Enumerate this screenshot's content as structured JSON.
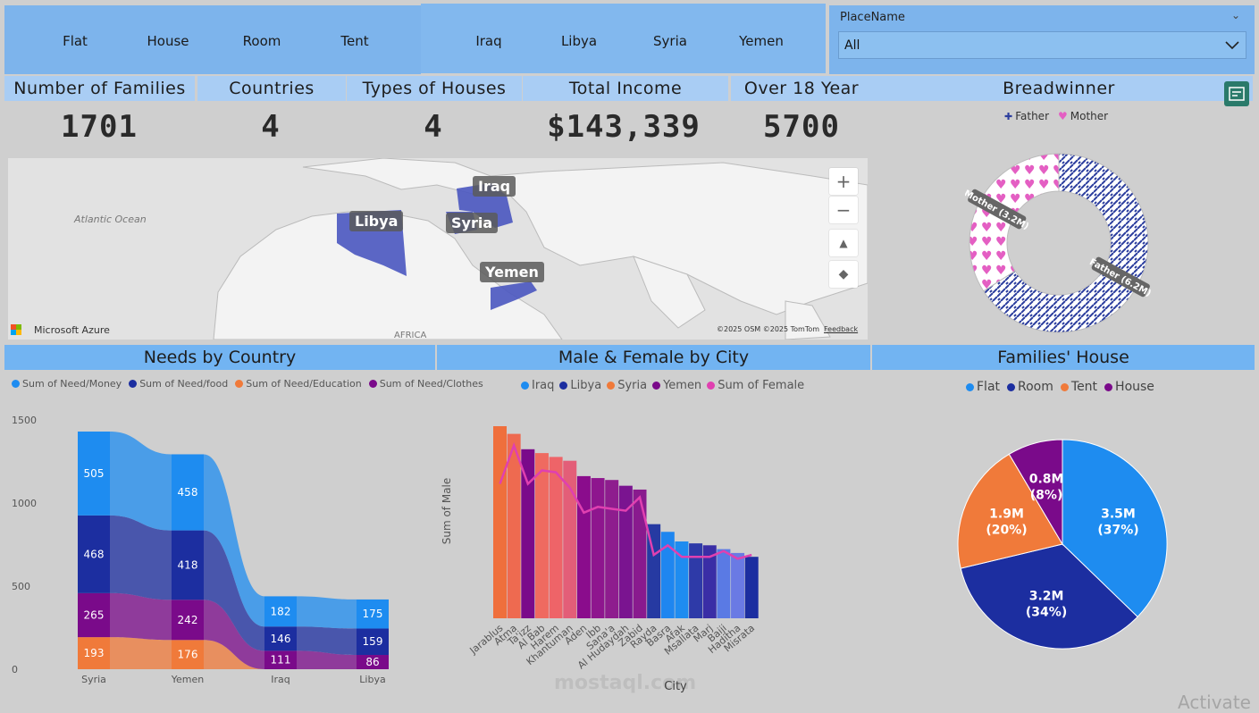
{
  "slicers": {
    "house_types": [
      "Flat",
      "House",
      "Room",
      "Tent"
    ],
    "countries": [
      "Iraq",
      "Libya",
      "Syria",
      "Yemen"
    ],
    "place": {
      "label": "PlaceName",
      "value": "All"
    }
  },
  "kpis": [
    {
      "label": "Number of Families",
      "value": "1701"
    },
    {
      "label": "Countries",
      "value": "4"
    },
    {
      "label": "Types of Houses",
      "value": "4"
    },
    {
      "label": "Total Income",
      "value": "$143,339"
    },
    {
      "label": "Over 18 Year",
      "value": "5700"
    }
  ],
  "map": {
    "ocean_label": "Atlantic Ocean",
    "continent_label": "AFRICA",
    "countries": [
      "Libya",
      "Iraq",
      "Syria",
      "Yemen"
    ],
    "attribution": "©2025 OSM  ©2025 TomTom",
    "feedback": "Feedback",
    "provider": "Microsoft Azure",
    "buttons": {
      "zoom_in": "+",
      "zoom_out": "−"
    }
  },
  "breadwinner": {
    "title": "Breadwinner",
    "chart_data": {
      "type": "pie",
      "categories": [
        "Father",
        "Mother"
      ],
      "values": [
        6.2,
        3.2
      ],
      "labels": [
        "Father (6.2M)",
        "Mother (3.2M)"
      ],
      "colors": [
        "#2c3e9e",
        "#e45fc3"
      ]
    }
  },
  "needs": {
    "title": "Needs by Country",
    "legend": [
      "Sum of Need/Money",
      "Sum of Need/food",
      "Sum of Need/Education",
      "Sum of Need/Clothes"
    ],
    "chart_data": {
      "type": "bar",
      "categories": [
        "Syria",
        "Yemen",
        "Iraq",
        "Libya"
      ],
      "series": [
        {
          "name": "Sum of Need/Education",
          "values": [
            193,
            176,
            null,
            null
          ],
          "color": "#f07a3a"
        },
        {
          "name": "Sum of Need/Clothes",
          "values": [
            265,
            242,
            111,
            86
          ],
          "color": "#7a0a8a"
        },
        {
          "name": "Sum of Need/food",
          "values": [
            468,
            418,
            146,
            159
          ],
          "color": "#1c2ea0"
        },
        {
          "name": "Sum of Need/Money",
          "values": [
            505,
            458,
            182,
            175
          ],
          "color": "#1e8cf0"
        }
      ],
      "yticks": [
        "0",
        "500",
        "1000",
        "1500"
      ],
      "ylim": [
        0,
        1500
      ]
    }
  },
  "malefemale": {
    "title": "Male & Female by City",
    "legend": [
      "Iraq",
      "Libya",
      "Syria",
      "Yemen",
      "Sum of Female"
    ],
    "chart_data": {
      "type": "bar",
      "xlabel": "City",
      "ylabel": "Sum of Male",
      "categories": [
        "Jarablus",
        "Atma",
        "Ta'izz",
        "Al Bab",
        "Harem",
        "Khantuman",
        "Aden",
        "Ibb",
        "Sana'a",
        "Al Hudaydah",
        "Zabid",
        "Rayda",
        "Basra",
        "Afak",
        "Msallata",
        "Marj",
        "Baiji",
        "Haditha",
        "Misrata"
      ],
      "values": [
        100,
        96,
        88,
        86,
        84,
        82,
        74,
        73,
        72,
        69,
        67,
        49,
        45,
        40,
        39,
        38,
        36,
        34,
        32
      ],
      "line": [
        70,
        90,
        70,
        77,
        76,
        68,
        55,
        58,
        57,
        56,
        63,
        33,
        38,
        32,
        32,
        32,
        35,
        31,
        33
      ],
      "colors": [
        "#ef6f3c",
        "#ee6a50",
        "#7a0a8a",
        "#ef6a60",
        "#ee6468",
        "#e35e78",
        "#8a0c8c",
        "#8e168e",
        "#8e1d8e",
        "#7a1490",
        "#891a8e",
        "#263aa2",
        "#1e86f0",
        "#1e8cf0",
        "#2e3aa8",
        "#3a2ea6",
        "#5a7ae4",
        "#6a7ae4",
        "#1c2ea0"
      ],
      "ylim": [
        0,
        110
      ]
    }
  },
  "families_house": {
    "title": "Families' House",
    "legend": [
      "Flat",
      "Room",
      "Tent",
      "House"
    ],
    "chart_data": {
      "type": "pie",
      "categories": [
        "Flat",
        "Room",
        "Tent",
        "House"
      ],
      "values": [
        3.5,
        3.2,
        1.9,
        0.8
      ],
      "labels": [
        "3.5M",
        "3.2M",
        "1.9M",
        "0.8M"
      ],
      "percents": [
        "(37%)",
        "(34%)",
        "(20%)",
        "(8%)"
      ],
      "colors": [
        "#1e8cf0",
        "#1c2ea0",
        "#f07a3a",
        "#7a0a8a"
      ]
    }
  },
  "watermark": "mostaql.com",
  "activate": "Activate"
}
